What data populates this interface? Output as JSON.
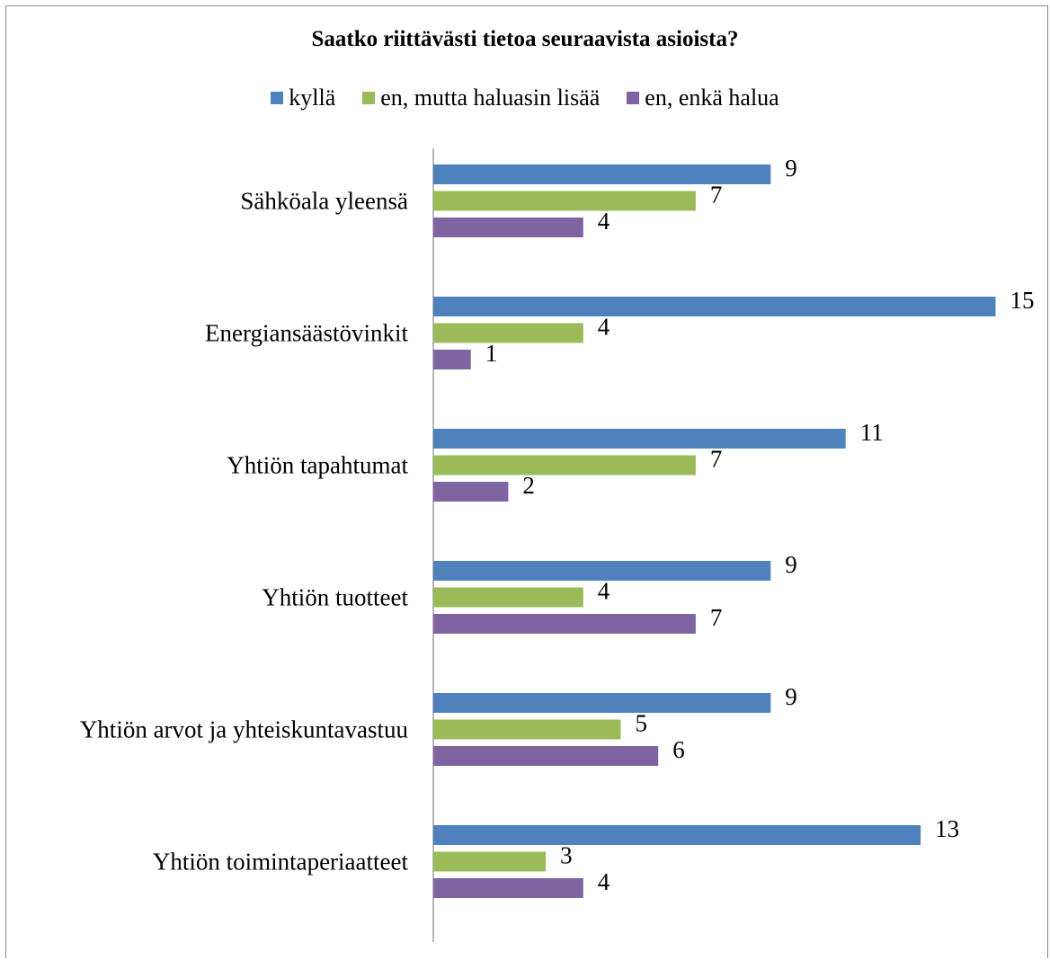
{
  "chart_data": {
    "type": "bar",
    "orientation": "horizontal",
    "title": "Saatko riittävästi tietoa seuraavista asioista?",
    "categories": [
      "Sähköala yleensä",
      "Energiansäästövinkit",
      "Yhtiön tapahtumat",
      "Yhtiön tuotteet",
      "Yhtiön arvot ja yhteiskuntavastuu",
      "Yhtiön toimintaperiaatteet"
    ],
    "series": [
      {
        "name": "kyllä",
        "color": "#4f81bd",
        "values": [
          9,
          15,
          11,
          9,
          9,
          13
        ]
      },
      {
        "name": "en, mutta haluasin lisää",
        "color": "#9bbb59",
        "values": [
          7,
          4,
          7,
          4,
          5,
          3
        ]
      },
      {
        "name": "en, enkä halua",
        "color": "#8064a2",
        "values": [
          4,
          1,
          2,
          7,
          6,
          4
        ]
      }
    ],
    "xlim": [
      0,
      15
    ],
    "grid": false,
    "legend_position": "top"
  }
}
